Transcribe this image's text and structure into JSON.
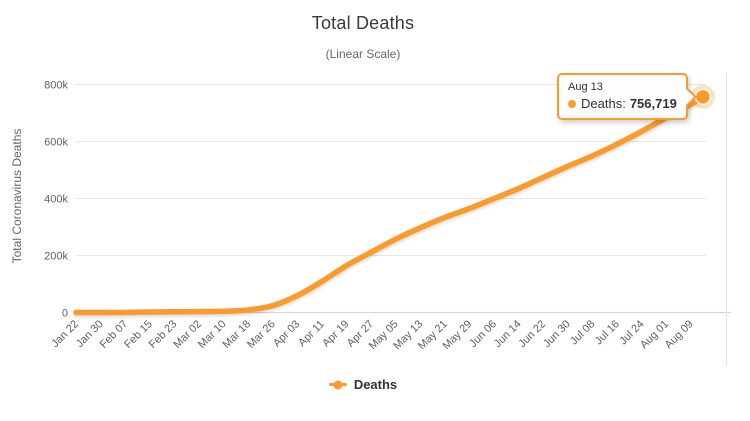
{
  "colors": {
    "series": "#FB9B2B",
    "halo": "rgba(251,155,43,0.3)",
    "marker_stroke": "#FFFFFF",
    "grid": "#E6E6E6",
    "axis_line": "#CCD6EB",
    "edge_line": "#E3E3E3",
    "title_text": "#3B3B3B",
    "subtitle_text": "#666666",
    "tick_text": "#606060",
    "legend_text": "#333333",
    "tooltip_bg": "#FDFDFD",
    "tooltip_border": "#FB9B2B"
  },
  "tooltip": {
    "date": "Aug 13",
    "series_label": "Deaths:",
    "value": "756,719"
  },
  "legend": {
    "label": "Deaths"
  },
  "chart_data": {
    "type": "line",
    "title": "Total Deaths",
    "subtitle": "(Linear Scale)",
    "xlabel": "",
    "ylabel": "Total Coronavirus Deaths",
    "ylim": [
      0,
      800000
    ],
    "grid": true,
    "legend_position": "bottom",
    "y_ticks": [
      {
        "value": 0,
        "label": "0"
      },
      {
        "value": 200000,
        "label": "200k"
      },
      {
        "value": 400000,
        "label": "400k"
      },
      {
        "value": 600000,
        "label": "600k"
      },
      {
        "value": 800000,
        "label": "800k"
      }
    ],
    "x_tick_days": [
      0,
      8,
      16,
      24,
      32,
      40,
      48,
      56,
      64,
      72,
      80,
      88,
      96,
      104,
      112,
      120,
      128,
      136,
      144,
      152,
      160,
      168,
      176,
      184,
      192,
      200
    ],
    "x_tick_labels": [
      "Jan 22",
      "Jan 30",
      "Feb 07",
      "Feb 15",
      "Feb 23",
      "Mar 02",
      "Mar 10",
      "Mar 18",
      "Mar 26",
      "Apr 03",
      "Apr 11",
      "Apr 19",
      "Apr 27",
      "May 05",
      "May 13",
      "May 21",
      "May 29",
      "Jun 06",
      "Jun 14",
      "Jun 22",
      "Jun 30",
      "Jul 08",
      "Jul 16",
      "Jul 24",
      "Aug 01",
      "Aug 09"
    ],
    "series": [
      {
        "name": "Deaths",
        "color": "#FB9B2B",
        "point_dates": [
          "Jan 22",
          "Jan 30",
          "Feb 07",
          "Feb 15",
          "Feb 23",
          "Mar 02",
          "Mar 10",
          "Mar 18",
          "Mar 26",
          "Apr 03",
          "Apr 11",
          "Apr 19",
          "Apr 27",
          "May 05",
          "May 13",
          "May 21",
          "May 29",
          "Jun 06",
          "Jun 14",
          "Jun 22",
          "Jun 30",
          "Jul 08",
          "Jul 16",
          "Jul 24",
          "Aug 01",
          "Aug 09",
          "Aug 13"
        ],
        "days": [
          0,
          8,
          16,
          24,
          32,
          40,
          48,
          56,
          64,
          72,
          80,
          88,
          96,
          104,
          112,
          120,
          128,
          136,
          144,
          152,
          160,
          168,
          176,
          184,
          192,
          200,
          204
        ],
        "values": [
          17,
          170,
          638,
          1669,
          2469,
          3117,
          4373,
          8969,
          24073,
          59203,
          108828,
          164656,
          211159,
          257239,
          297197,
          333446,
          364902,
          399718,
          434796,
          474240,
          512943,
          549481,
          590608,
          635173,
          684075,
          730456,
          756719
        ]
      }
    ]
  }
}
